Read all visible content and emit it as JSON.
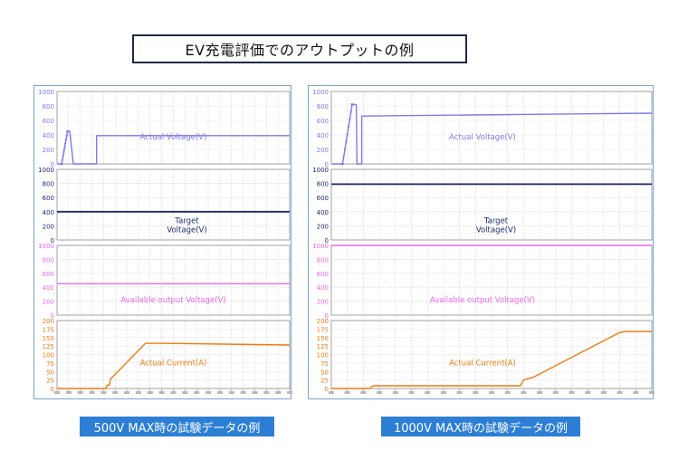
{
  "page_title": "EV充電評価でのアウトプットの例",
  "captions": {
    "left": "500V MAX時の試験データの例",
    "right": "1000V MAX時の試験データの例"
  },
  "colors": {
    "actual_voltage": "#7b7bef",
    "target_voltage": "#1a2a6c",
    "available_voltage": "#ee66ee",
    "actual_current": "#f07a10",
    "grid": "#cfcfcf",
    "frame": "#7aa6d4",
    "caption_bg": "#2d7fd6"
  },
  "chart_data": [
    {
      "id": "left",
      "type": "line",
      "x_range": [
        0,
        100
      ],
      "x_tick_count": 20,
      "subplots": [
        {
          "id": "actual_voltage",
          "label": "Actual Voltage(V)",
          "color_key": "actual_voltage",
          "ylim": [
            0,
            1000
          ],
          "yticks": [
            0,
            200,
            400,
            600,
            800,
            1000
          ],
          "ticks_text": [
            "0",
            "200",
            "400",
            "600",
            "800",
            "1000"
          ],
          "dotted_segment": [
            2,
            5
          ],
          "points": [
            [
              0,
              0
            ],
            [
              2,
              0
            ],
            [
              4.5,
              450
            ],
            [
              5.5,
              450
            ],
            [
              7,
              0
            ],
            [
              17,
              0
            ],
            [
              17,
              390
            ],
            [
              100,
              390
            ]
          ]
        },
        {
          "id": "target_voltage",
          "label": "Target Voltage(V)",
          "label_lines": [
            "Target",
            "Voltage(V)"
          ],
          "color_key": "target_voltage",
          "ylim": [
            0,
            1000
          ],
          "yticks": [
            0,
            200,
            400,
            600,
            800,
            1000
          ],
          "ticks_text": [
            "0",
            "200",
            "400",
            "600",
            "800",
            "1000"
          ],
          "points": [
            [
              0,
              400
            ],
            [
              100,
              400
            ]
          ]
        },
        {
          "id": "available_voltage",
          "label": "Available output  Voltage(V)",
          "color_key": "available_voltage",
          "ylim": [
            0,
            1000
          ],
          "yticks": [
            0,
            200,
            400,
            600,
            800,
            1000
          ],
          "ticks_text": [
            "0",
            "200",
            "400",
            "600",
            "800",
            "1000"
          ],
          "points": [
            [
              0,
              450
            ],
            [
              100,
              450
            ]
          ]
        },
        {
          "id": "actual_current",
          "label": "Actual  Current(A)",
          "color_key": "actual_current",
          "ylim": [
            0,
            200
          ],
          "yticks": [
            0,
            25,
            50,
            75,
            100,
            125,
            150,
            175,
            200
          ],
          "ticks_text": [
            "0",
            "25",
            "50",
            "75",
            "100",
            "125",
            "150",
            "175",
            "200"
          ],
          "points": [
            [
              0,
              0
            ],
            [
              21,
              0
            ],
            [
              21.5,
              10
            ],
            [
              22.5,
              10
            ],
            [
              23,
              28
            ],
            [
              38,
              133
            ],
            [
              45,
              133
            ],
            [
              100,
              128
            ]
          ]
        }
      ]
    },
    {
      "id": "right",
      "type": "line",
      "x_range": [
        0,
        100
      ],
      "x_tick_count": 20,
      "subplots": [
        {
          "id": "actual_voltage",
          "label": "Actual Voltage(V)",
          "color_key": "actual_voltage",
          "ylim": [
            0,
            1000
          ],
          "yticks": [
            0,
            200,
            400,
            600,
            800,
            1000
          ],
          "ticks_text": [
            "0",
            "200",
            "400",
            "600",
            "800",
            "1000"
          ],
          "dotted_segment": [
            3.5,
            7.5
          ],
          "points": [
            [
              0,
              0
            ],
            [
              3.5,
              0
            ],
            [
              6.5,
              820
            ],
            [
              7.8,
              820
            ],
            [
              8,
              0
            ],
            [
              9.5,
              0
            ],
            [
              9.5,
              660
            ],
            [
              100,
              700
            ]
          ]
        },
        {
          "id": "target_voltage",
          "label": "Target Voltage(V)",
          "label_lines": [
            "Target",
            "Voltage(V)"
          ],
          "color_key": "target_voltage",
          "ylim": [
            0,
            1000
          ],
          "yticks": [
            0,
            200,
            400,
            600,
            800,
            1000
          ],
          "ticks_text": [
            "0",
            "200",
            "400",
            "600",
            "800",
            "1000"
          ],
          "points": [
            [
              0,
              790
            ],
            [
              100,
              790
            ]
          ]
        },
        {
          "id": "available_voltage",
          "label": "Available output  Voltage(V)",
          "color_key": "available_voltage",
          "ylim": [
            0,
            1000
          ],
          "yticks": [
            0,
            200,
            400,
            600,
            800,
            1000
          ],
          "ticks_text": [
            "0",
            "200",
            "400",
            "600",
            "800",
            "1000"
          ],
          "points": [
            [
              0,
              1000
            ],
            [
              100,
              1000
            ]
          ]
        },
        {
          "id": "actual_current",
          "label": "Actual  Current(A)",
          "color_key": "actual_current",
          "ylim": [
            0,
            200
          ],
          "yticks": [
            0,
            25,
            50,
            75,
            100,
            125,
            150,
            175,
            200
          ],
          "ticks_text": [
            "0",
            "25",
            "50",
            "75",
            "100",
            "125",
            "150",
            "175",
            "200"
          ],
          "points": [
            [
              0,
              0
            ],
            [
              12,
              0
            ],
            [
              13,
              8
            ],
            [
              59,
              8
            ],
            [
              60,
              25
            ],
            [
              63,
              33
            ],
            [
              90,
              165
            ],
            [
              92,
              168
            ],
            [
              100,
              168
            ]
          ]
        }
      ]
    }
  ]
}
